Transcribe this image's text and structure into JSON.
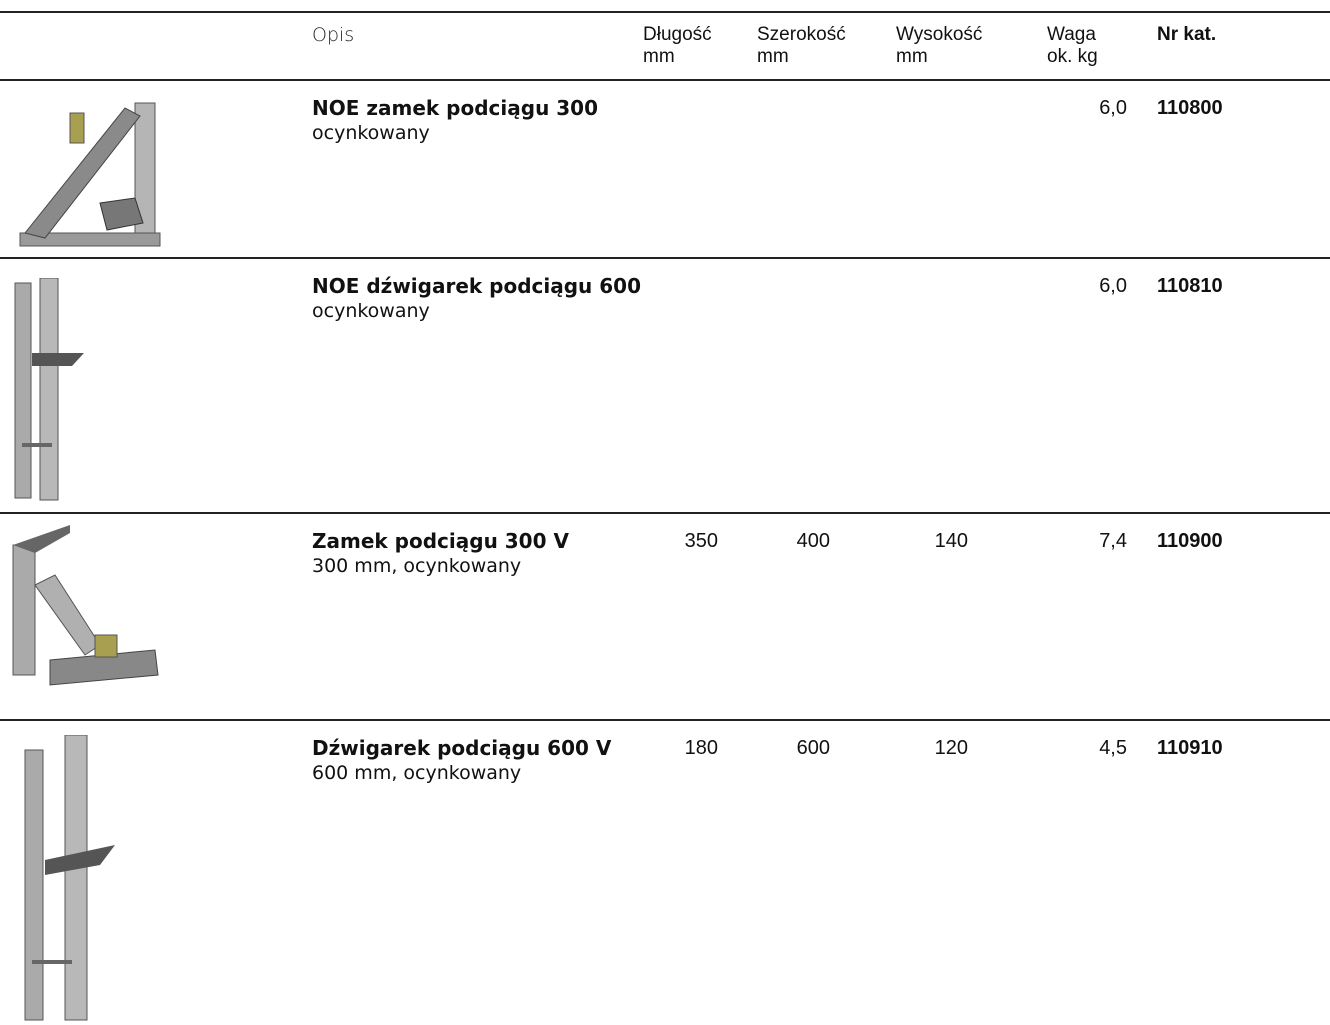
{
  "table": {
    "header": [
      "Opis",
      [
        "Długość",
        "mm"
      ],
      [
        "Szerokość",
        "mm"
      ],
      [
        "Wysokość",
        "mm"
      ],
      [
        "Waga",
        "ok.  kg"
      ],
      "Nr kat."
    ],
    "rows": [
      {
        "name": "NOE zamek podciągu 300",
        "note": "ocynkowany",
        "length": null,
        "width": null,
        "height": null,
        "weight": "6,0",
        "catalog": "110800"
      },
      {
        "name": "NOE dźwigarek podciągu 600",
        "note": "ocynkowany",
        "length": null,
        "width": null,
        "height": null,
        "weight": "6,0",
        "catalog": "110810"
      },
      {
        "name": "Zamek podciągu 300 V",
        "note": "300 mm, ocynkowany",
        "length": "350",
        "width": "400",
        "height": "140",
        "weight": "7,4",
        "catalog": "110900"
      },
      {
        "name": "Dźwigarek podciągu 600 V",
        "note": "600 mm, ocynkowany",
        "length": "180",
        "width": "600",
        "height": "120",
        "weight": "4,5",
        "catalog": "110910"
      }
    ]
  }
}
